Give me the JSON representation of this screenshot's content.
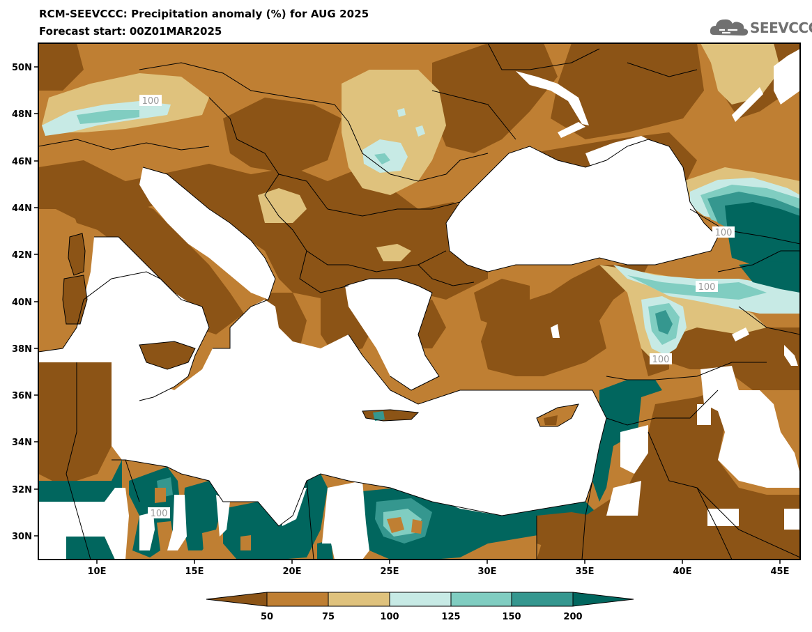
{
  "title": "RCM-SEEVCCC: Precipitation anomaly (%) for AUG 2025",
  "subtitle": "Forecast start: 00Z01MAR2025",
  "logo": {
    "text": "SEEVCCC",
    "icon": "cloud-logo-icon"
  },
  "map": {
    "lon_range": [
      7,
      46
    ],
    "lat_range": [
      29,
      51
    ],
    "lon_ticks": [
      "10E",
      "15E",
      "20E",
      "25E",
      "30E",
      "35E",
      "40E",
      "45E"
    ],
    "lat_ticks": [
      "50N",
      "48N",
      "46N",
      "44N",
      "42N",
      "40N",
      "38N",
      "36N",
      "34N",
      "32N",
      "30N"
    ],
    "contour_labels": [
      "100",
      "100",
      "100",
      "100",
      "100"
    ],
    "sea_color": "#ffffff",
    "border_color": "#000000"
  },
  "legend": {
    "levels": [
      "50",
      "75",
      "100",
      "125",
      "150",
      "200"
    ],
    "colors": [
      "#8c5416",
      "#bf7f33",
      "#dfc27d",
      "#c7eae5",
      "#80cdc1",
      "#35978f",
      "#01665e"
    ]
  }
}
